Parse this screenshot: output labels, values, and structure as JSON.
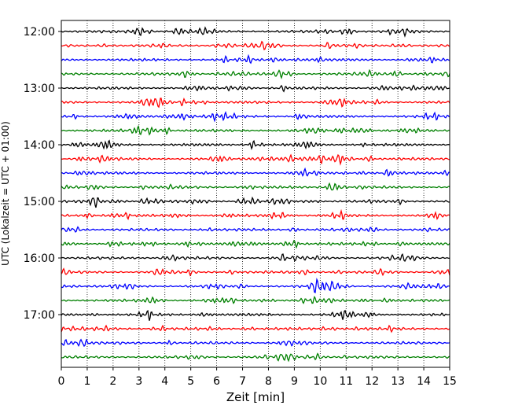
{
  "chart_data": {
    "type": "line",
    "title": "",
    "xlabel": "Zeit  [min]",
    "ylabel": "UTC (Lokalzeit = UTC + 01:00)",
    "xlim": [
      0,
      15
    ],
    "x_ticks": [
      0,
      1,
      2,
      3,
      4,
      5,
      6,
      7,
      8,
      9,
      10,
      11,
      12,
      13,
      14,
      15
    ],
    "y_ticks": [
      "12:00",
      "13:00",
      "14:00",
      "15:00",
      "16:00",
      "17:00"
    ],
    "trace_start": "12:00",
    "trace_end": "17:45",
    "trace_interval_min": 15,
    "trace_colors": [
      "#000000",
      "#ff0000",
      "#0000ff",
      "#008000"
    ],
    "x_grid": true,
    "grid_style": "dotted",
    "legend": "none"
  }
}
